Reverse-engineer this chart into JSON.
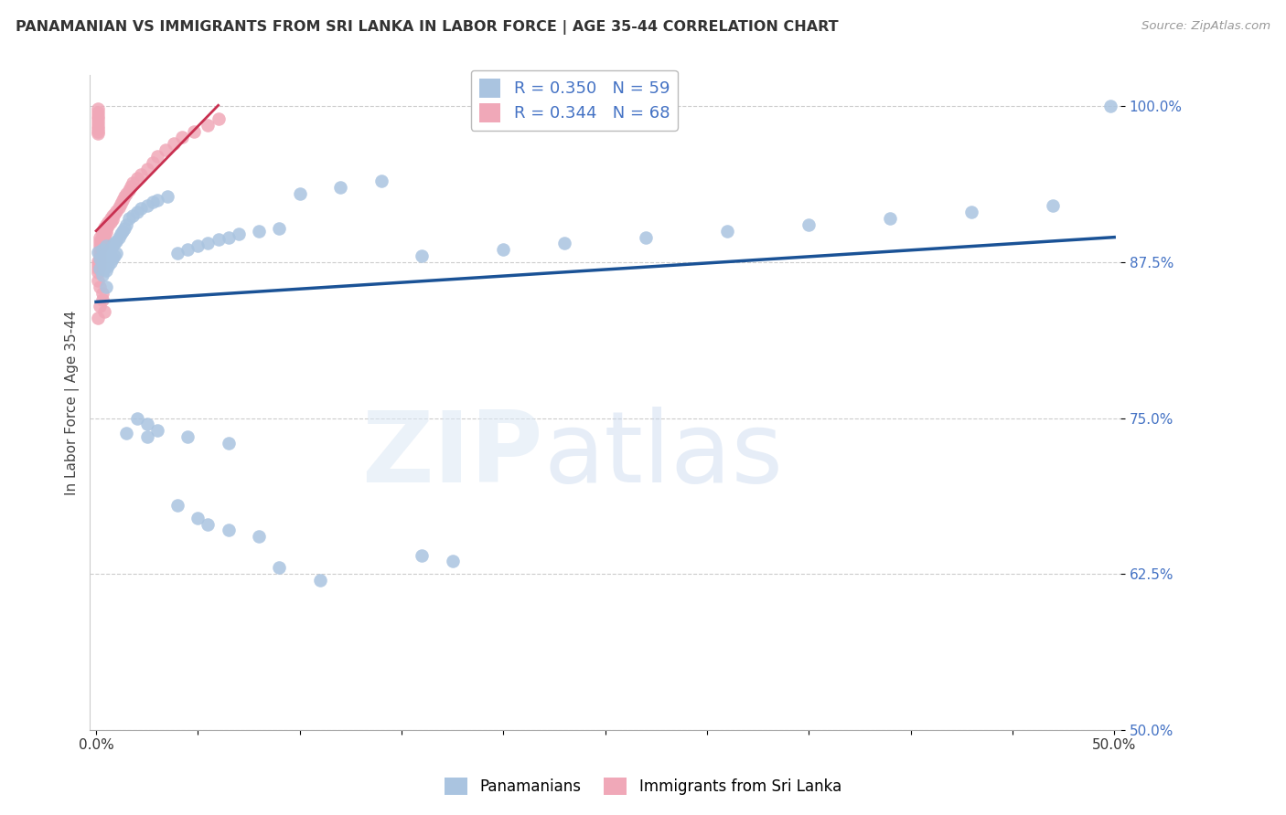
{
  "title": "PANAMANIAN VS IMMIGRANTS FROM SRI LANKA IN LABOR FORCE | AGE 35-44 CORRELATION CHART",
  "source": "Source: ZipAtlas.com",
  "ylabel": "In Labor Force | Age 35-44",
  "xlim": [
    -0.003,
    0.503
  ],
  "ylim": [
    0.5,
    1.025
  ],
  "yticks": [
    0.5,
    0.625,
    0.75,
    0.875,
    1.0
  ],
  "yticklabels": [
    "50.0%",
    "62.5%",
    "75.0%",
    "87.5%",
    "100.0%"
  ],
  "xtick_positions": [
    0.0,
    0.05,
    0.1,
    0.15,
    0.2,
    0.25,
    0.3,
    0.35,
    0.4,
    0.45,
    0.5
  ],
  "blue_R": 0.35,
  "blue_N": 59,
  "pink_R": 0.344,
  "pink_N": 68,
  "blue_scatter_color": "#aac4e0",
  "pink_scatter_color": "#f0a8b8",
  "blue_line_color": "#1a5296",
  "pink_line_color": "#c83050",
  "legend_blue_label": "Panamanians",
  "legend_pink_label": "Immigrants from Sri Lanka",
  "blue_x": [
    0.001,
    0.002,
    0.002,
    0.003,
    0.003,
    0.003,
    0.004,
    0.004,
    0.005,
    0.005,
    0.005,
    0.005,
    0.006,
    0.006,
    0.007,
    0.007,
    0.008,
    0.008,
    0.009,
    0.009,
    0.01,
    0.01,
    0.011,
    0.012,
    0.013,
    0.014,
    0.015,
    0.016,
    0.018,
    0.02,
    0.022,
    0.025,
    0.028,
    0.03,
    0.035,
    0.04,
    0.045,
    0.05,
    0.055,
    0.06,
    0.065,
    0.07,
    0.08,
    0.09,
    0.1,
    0.12,
    0.14,
    0.16,
    0.2,
    0.23,
    0.27,
    0.31,
    0.35,
    0.39,
    0.43,
    0.47,
    0.498,
    0.015,
    0.025
  ],
  "blue_y": [
    0.883,
    0.878,
    0.87,
    0.885,
    0.875,
    0.865,
    0.88,
    0.87,
    0.888,
    0.878,
    0.868,
    0.855,
    0.882,
    0.872,
    0.885,
    0.875,
    0.888,
    0.878,
    0.89,
    0.88,
    0.892,
    0.882,
    0.895,
    0.898,
    0.9,
    0.902,
    0.905,
    0.91,
    0.912,
    0.915,
    0.918,
    0.92,
    0.923,
    0.925,
    0.928,
    0.882,
    0.885,
    0.888,
    0.89,
    0.893,
    0.895,
    0.898,
    0.9,
    0.902,
    0.93,
    0.935,
    0.94,
    0.88,
    0.885,
    0.89,
    0.895,
    0.9,
    0.905,
    0.91,
    0.915,
    0.92,
    1.0,
    0.738,
    0.735
  ],
  "blue_x_outliers": [
    0.02,
    0.025,
    0.03,
    0.045,
    0.065,
    0.09,
    0.11
  ],
  "blue_y_outliers": [
    0.75,
    0.745,
    0.74,
    0.735,
    0.73,
    0.63,
    0.62
  ],
  "blue_x_low": [
    0.04,
    0.05,
    0.055,
    0.065,
    0.08,
    0.16,
    0.175
  ],
  "blue_y_low": [
    0.68,
    0.67,
    0.665,
    0.66,
    0.655,
    0.64,
    0.635
  ],
  "pink_x": [
    0.001,
    0.001,
    0.001,
    0.001,
    0.001,
    0.001,
    0.001,
    0.001,
    0.001,
    0.001,
    0.001,
    0.001,
    0.001,
    0.002,
    0.002,
    0.002,
    0.002,
    0.002,
    0.002,
    0.002,
    0.002,
    0.002,
    0.003,
    0.003,
    0.003,
    0.003,
    0.003,
    0.004,
    0.004,
    0.004,
    0.004,
    0.005,
    0.005,
    0.005,
    0.006,
    0.006,
    0.007,
    0.007,
    0.008,
    0.008,
    0.009,
    0.01,
    0.011,
    0.012,
    0.013,
    0.014,
    0.015,
    0.016,
    0.017,
    0.018,
    0.02,
    0.022,
    0.025,
    0.028,
    0.03,
    0.034,
    0.038,
    0.042,
    0.048,
    0.055,
    0.06,
    0.002,
    0.003,
    0.001,
    0.002,
    0.003,
    0.004,
    0.001
  ],
  "pink_y": [
    0.998,
    0.995,
    0.992,
    0.99,
    0.987,
    0.984,
    0.982,
    0.98,
    0.978,
    0.876,
    0.873,
    0.87,
    0.867,
    0.895,
    0.892,
    0.889,
    0.886,
    0.883,
    0.88,
    0.877,
    0.874,
    0.871,
    0.9,
    0.897,
    0.894,
    0.891,
    0.888,
    0.903,
    0.9,
    0.897,
    0.894,
    0.905,
    0.902,
    0.899,
    0.907,
    0.904,
    0.91,
    0.907,
    0.912,
    0.909,
    0.914,
    0.916,
    0.919,
    0.922,
    0.925,
    0.928,
    0.93,
    0.933,
    0.936,
    0.939,
    0.942,
    0.945,
    0.95,
    0.955,
    0.96,
    0.965,
    0.97,
    0.975,
    0.98,
    0.985,
    0.99,
    0.84,
    0.85,
    0.86,
    0.855,
    0.845,
    0.835,
    0.83
  ]
}
